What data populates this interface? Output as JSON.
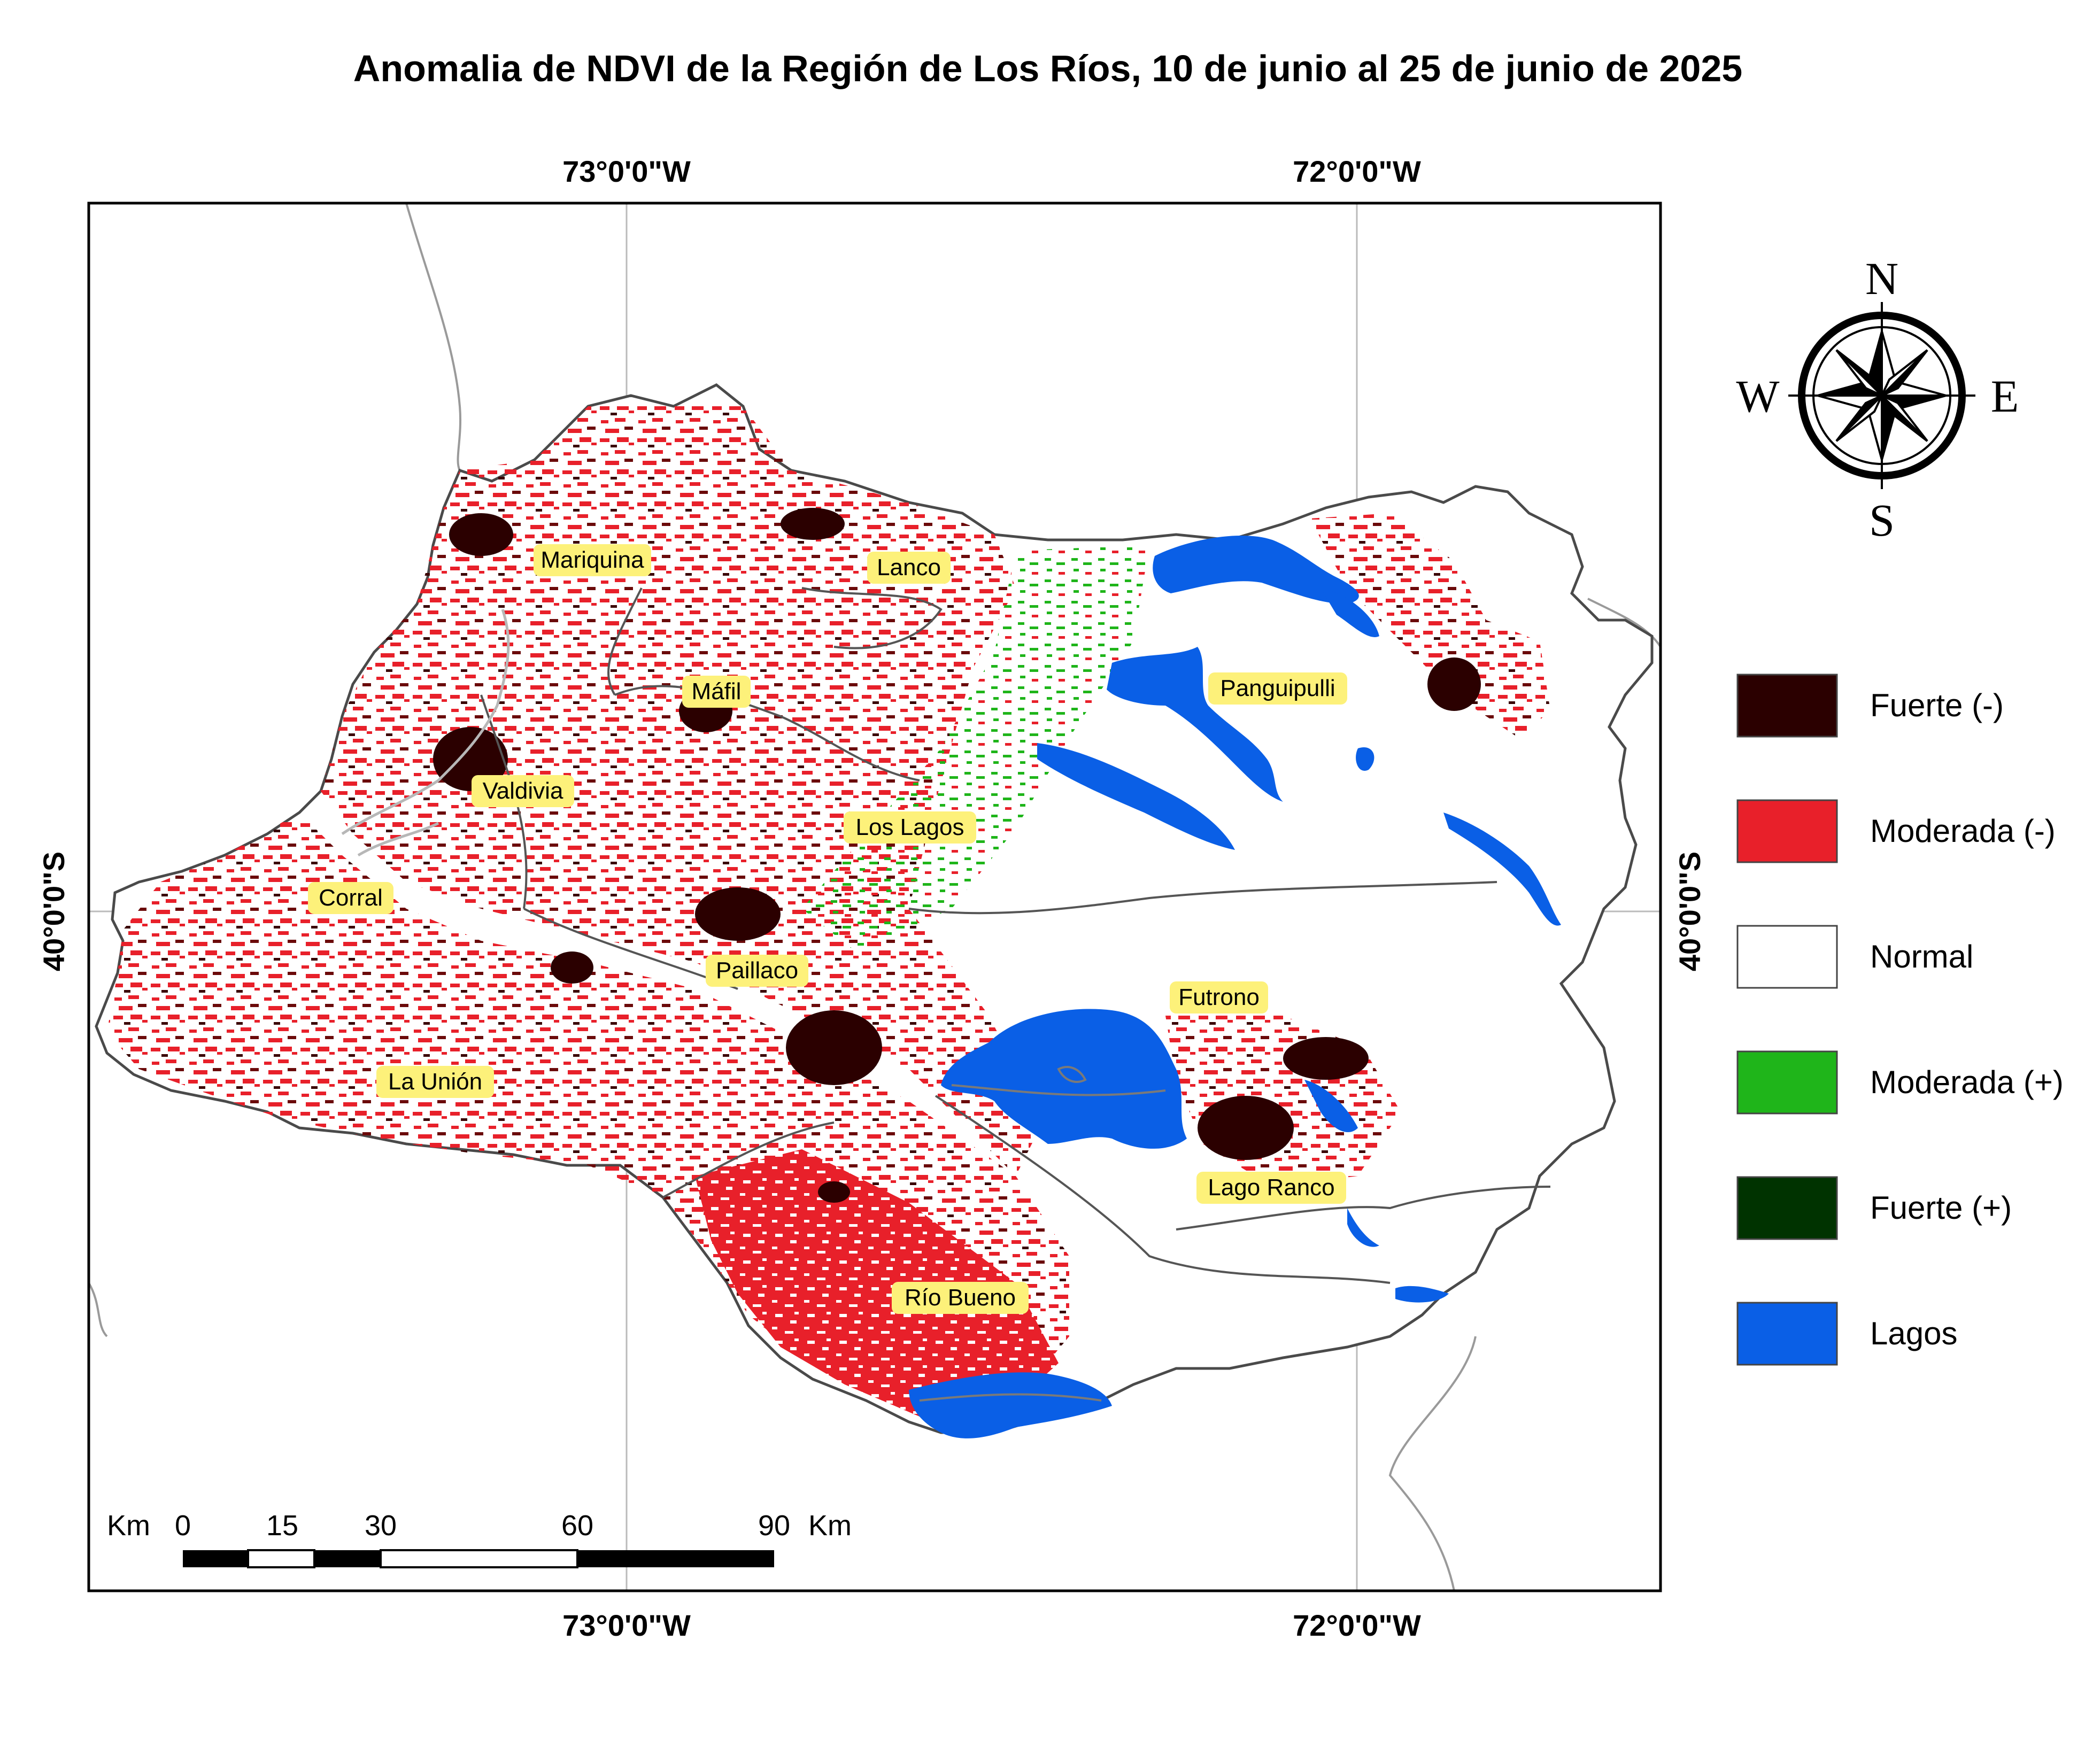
{
  "title": "Anomalia de NDVI de la Región de Los Ríos, 10 de junio al 25 de junio de 2025",
  "graticule": {
    "top": [
      "73°0'0\"W",
      "72°0'0\"W"
    ],
    "bottom": [
      "73°0'0\"W",
      "72°0'0\"W"
    ],
    "left": "40°0'0\"S",
    "right": "40°0'0\"S"
  },
  "towns": [
    "Mariquina",
    "Lanco",
    "Máfil",
    "Panguipulli",
    "Valdivia",
    "Los Lagos",
    "Corral",
    "Paillaco",
    "Futrono",
    "La Unión",
    "Lago Ranco",
    "Río Bueno"
  ],
  "compass": {
    "n": "N",
    "s": "S",
    "e": "E",
    "w": "W"
  },
  "legend": [
    {
      "label": "Fuerte (-)",
      "color": "#2b0000"
    },
    {
      "label": "Moderada (-)",
      "color": "#e8202a"
    },
    {
      "label": "Normal",
      "color": "#ffffff"
    },
    {
      "label": "Moderada (+)",
      "color": "#1fb51a"
    },
    {
      "label": "Fuerte (+)",
      "color": "#003300"
    },
    {
      "label": "Lagos",
      "color": "#0a5fe6"
    }
  ],
  "scalebar": {
    "unit_left": "Km",
    "unit_right": "Km",
    "ticks": [
      "0",
      "15",
      "30",
      "60",
      "90"
    ]
  }
}
